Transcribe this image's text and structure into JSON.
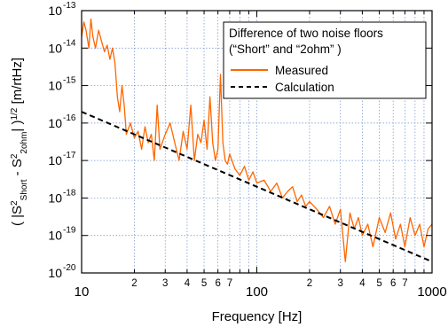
{
  "chart_data": {
    "type": "line",
    "xlabel": "Frequency [Hz]",
    "ylabel_parts": {
      "open": "( |S",
      "sup1": "2",
      "sub1": "Short",
      "minus": " - S",
      "sup2": "2",
      "sub2": "2ohm",
      "close": "| )",
      "sup3": "1/2",
      "unit": " [m/rtHz]"
    },
    "xscale": "log",
    "yscale": "log",
    "xlim": [
      10,
      1000
    ],
    "ylim": [
      1e-20,
      1e-13
    ],
    "grid": true,
    "legend_position": "top-right",
    "legend_title_lines": [
      "Difference of two noise floors",
      "(“Short” and “2ohm” )"
    ],
    "x_major_ticks": [
      {
        "value": 10,
        "label": "10"
      },
      {
        "value": 100,
        "label": "100"
      },
      {
        "value": 1000,
        "label": "1000"
      }
    ],
    "x_minor_ticks": [
      {
        "value": 20,
        "label": "2"
      },
      {
        "value": 30,
        "label": "3"
      },
      {
        "value": 40,
        "label": "4"
      },
      {
        "value": 50,
        "label": "5"
      },
      {
        "value": 60,
        "label": "6"
      },
      {
        "value": 70,
        "label": "7"
      },
      {
        "value": 200,
        "label": "2"
      },
      {
        "value": 300,
        "label": "3"
      },
      {
        "value": 400,
        "label": "4"
      },
      {
        "value": 500,
        "label": "5"
      },
      {
        "value": 600,
        "label": "6"
      },
      {
        "value": 700,
        "label": "7"
      }
    ],
    "x_minor_unlabeled": [
      80,
      90,
      800,
      900
    ],
    "y_ticks": [
      {
        "exp": -20,
        "base": "10",
        "sup": "-20"
      },
      {
        "exp": -19,
        "base": "10",
        "sup": "-19"
      },
      {
        "exp": -18,
        "base": "10",
        "sup": "-18"
      },
      {
        "exp": -17,
        "base": "10",
        "sup": "-17"
      },
      {
        "exp": -16,
        "base": "10",
        "sup": "-16"
      },
      {
        "exp": -15,
        "base": "10",
        "sup": "-15"
      },
      {
        "exp": -14,
        "base": "10",
        "sup": "-14"
      },
      {
        "exp": -13,
        "base": "10",
        "sup": "-13"
      }
    ],
    "series": [
      {
        "name": "Measured",
        "style": "solid",
        "color": "#ff6600",
        "x": [
          10,
          10.3,
          10.6,
          11,
          11.3,
          11.6,
          12,
          12.5,
          13,
          13.5,
          14,
          14.5,
          15,
          15.5,
          16,
          16.5,
          17,
          17.5,
          18,
          19,
          20,
          21,
          22,
          23,
          24,
          25,
          26,
          27,
          28,
          30,
          32,
          34,
          36,
          38,
          40,
          42,
          44,
          46,
          48,
          50,
          52,
          54,
          56,
          58,
          60,
          62,
          64,
          66,
          68,
          70,
          75,
          80,
          85,
          90,
          95,
          100,
          110,
          120,
          130,
          140,
          150,
          160,
          170,
          180,
          190,
          200,
          220,
          240,
          260,
          280,
          300,
          320,
          340,
          360,
          380,
          400,
          430,
          460,
          500,
          540,
          580,
          620,
          660,
          700,
          750,
          800,
          850,
          900,
          950,
          1000
        ],
        "y": [
          2e-14,
          5e-14,
          3e-14,
          1e-14,
          6e-14,
          2e-14,
          1e-14,
          3e-14,
          1.5e-14,
          8e-15,
          1.2e-14,
          5e-15,
          1e-14,
          4e-15,
          5e-16,
          2e-16,
          1e-15,
          3e-16,
          5e-17,
          1e-16,
          4e-17,
          6e-17,
          2e-17,
          8e-17,
          3e-17,
          5e-17,
          1e-17,
          3e-16,
          2e-17,
          5e-17,
          1e-16,
          3e-17,
          1e-17,
          6e-17,
          2e-17,
          3e-16,
          1e-17,
          5e-17,
          3e-17,
          1.2e-16,
          2e-17,
          5e-16,
          3e-17,
          1e-17,
          2e-17,
          2e-15,
          3e-17,
          1e-17,
          8e-18,
          1.5e-17,
          6e-18,
          4e-18,
          7e-18,
          3e-18,
          5e-18,
          2.5e-18,
          3e-18,
          1.5e-18,
          2.5e-18,
          1e-18,
          1.5e-18,
          2e-18,
          8e-19,
          1.2e-18,
          6e-19,
          8e-19,
          5e-19,
          3e-19,
          6e-19,
          2e-19,
          5e-19,
          2e-20,
          4e-19,
          1.5e-19,
          3e-19,
          1e-19,
          2e-19,
          5e-20,
          3e-19,
          1.2e-19,
          4e-19,
          8e-20,
          2e-19,
          5e-20,
          3e-19,
          1e-19,
          2e-19,
          5e-20,
          1.5e-19,
          2e-19
        ]
      },
      {
        "name": "Calculation",
        "style": "dashed",
        "color": "#000000",
        "x": [
          10,
          1000
        ],
        "y": [
          2e-16,
          2e-20
        ]
      }
    ]
  }
}
